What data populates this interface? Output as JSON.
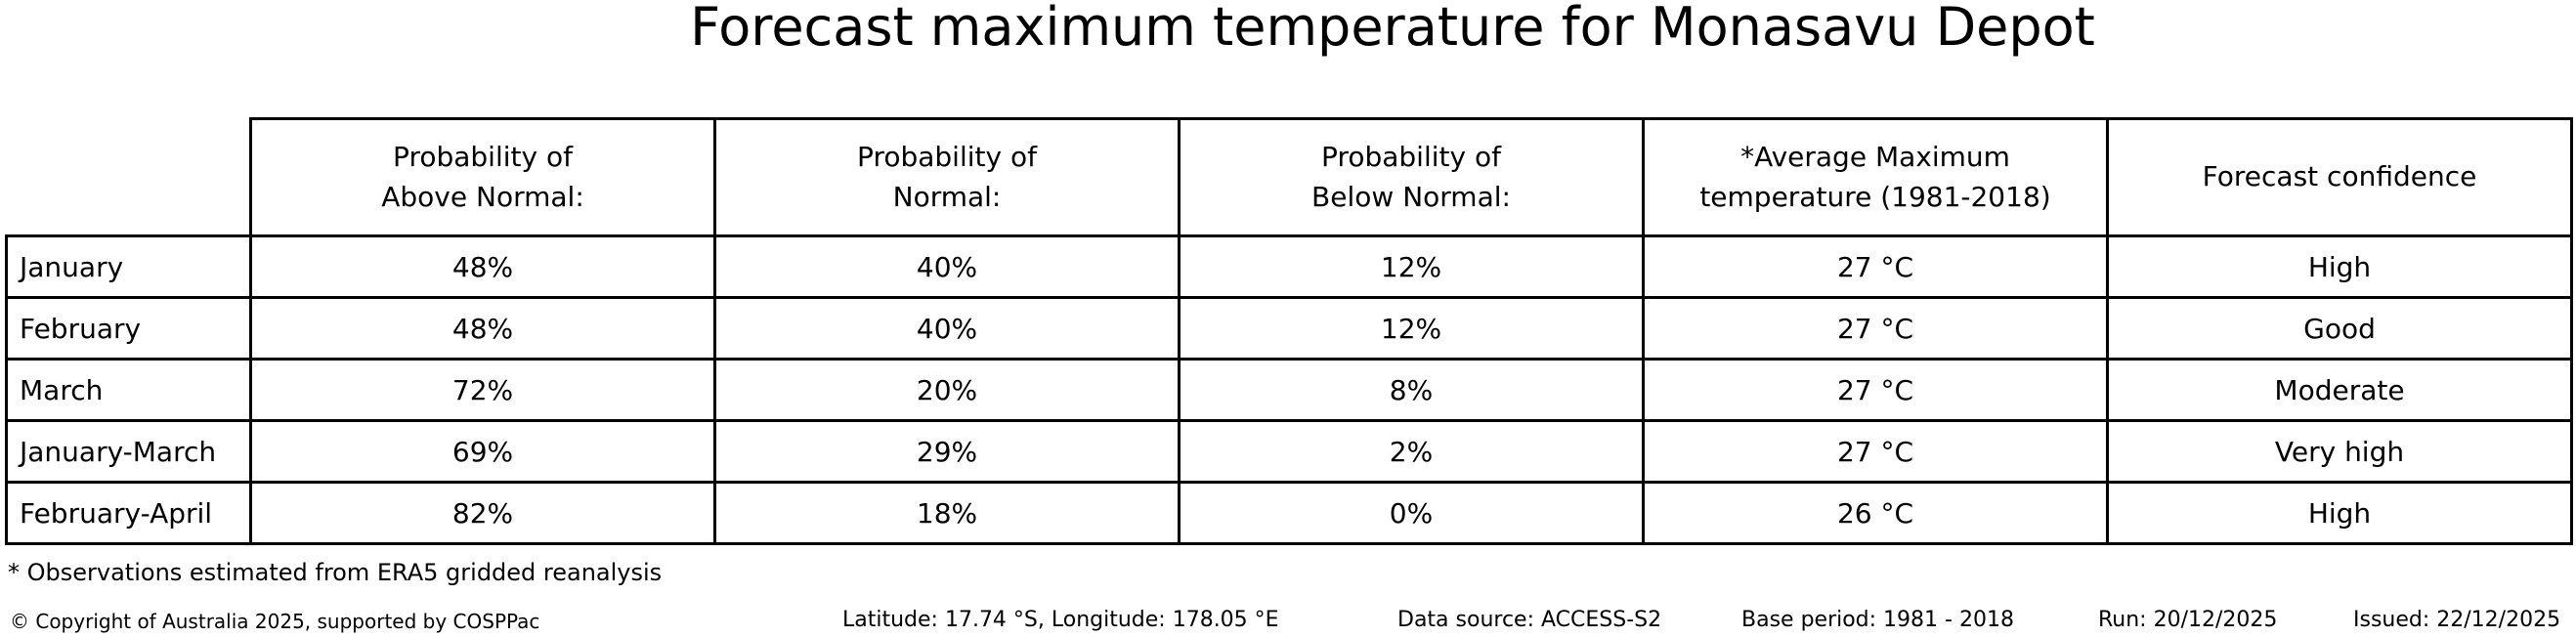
{
  "title": "Forecast maximum temperature for Monasavu Depot",
  "table": {
    "headers": {
      "above": "Probability of\nAbove Normal:",
      "normal": "Probability of\nNormal:",
      "below": "Probability of\nBelow Normal:",
      "avg_max": "*Average Maximum\ntemperature (1981-2018)",
      "confidence": "Forecast confidence"
    },
    "rows": [
      {
        "label": "January",
        "above": "48%",
        "normal": "40%",
        "below": "12%",
        "avg_max": "27 °C",
        "confidence": "High"
      },
      {
        "label": "February",
        "above": "48%",
        "normal": "40%",
        "below": "12%",
        "avg_max": "27 °C",
        "confidence": "Good"
      },
      {
        "label": "March",
        "above": "72%",
        "normal": "20%",
        "below": "8%",
        "avg_max": "27 °C",
        "confidence": "Moderate"
      },
      {
        "label": "January-March",
        "above": "69%",
        "normal": "29%",
        "below": "2%",
        "avg_max": "27 °C",
        "confidence": "Very high"
      },
      {
        "label": "February-April",
        "above": "82%",
        "normal": "18%",
        "below": "0%",
        "avg_max": "26 °C",
        "confidence": "High"
      }
    ]
  },
  "footnote": "* Observations estimated from ERA5 gridded reanalysis",
  "footer": {
    "copyright": "© Copyright of Australia 2025, supported by COSPPac",
    "location": "Latitude: 17.74 °S, Longitude: 178.05 °E",
    "data_source": "Data source: ACCESS-S2",
    "base_period": "Base period: 1981 - 2018",
    "run": "Run: 20/12/2025",
    "issued": "Issued: 22/12/2025"
  },
  "colors": {
    "text": "#000000",
    "background": "#ffffff",
    "border": "#000000"
  },
  "chart_data": {
    "type": "table",
    "title": "Forecast maximum temperature for Monasavu Depot",
    "columns": [
      "",
      "Probability of Above Normal:",
      "Probability of Normal:",
      "Probability of Below Normal:",
      "*Average Maximum temperature (1981-2018)",
      "Forecast confidence"
    ],
    "rows": [
      [
        "January",
        "48%",
        "40%",
        "12%",
        "27 °C",
        "High"
      ],
      [
        "February",
        "48%",
        "40%",
        "12%",
        "27 °C",
        "Good"
      ],
      [
        "March",
        "72%",
        "20%",
        "8%",
        "27 °C",
        "Moderate"
      ],
      [
        "January-March",
        "69%",
        "29%",
        "2%",
        "27 °C",
        "Very high"
      ],
      [
        "February-April",
        "82%",
        "18%",
        "0%",
        "26 °C",
        "High"
      ]
    ],
    "probabilities_above_normal": [
      48,
      48,
      72,
      69,
      82
    ],
    "probabilities_normal": [
      40,
      40,
      20,
      29,
      18
    ],
    "probabilities_below_normal": [
      12,
      12,
      8,
      2,
      0
    ],
    "average_max_temperature_c": [
      27,
      27,
      27,
      27,
      26
    ],
    "forecast_confidence": [
      "High",
      "Good",
      "Moderate",
      "Very high",
      "High"
    ],
    "footnote": "* Observations estimated from ERA5 gridded reanalysis"
  }
}
